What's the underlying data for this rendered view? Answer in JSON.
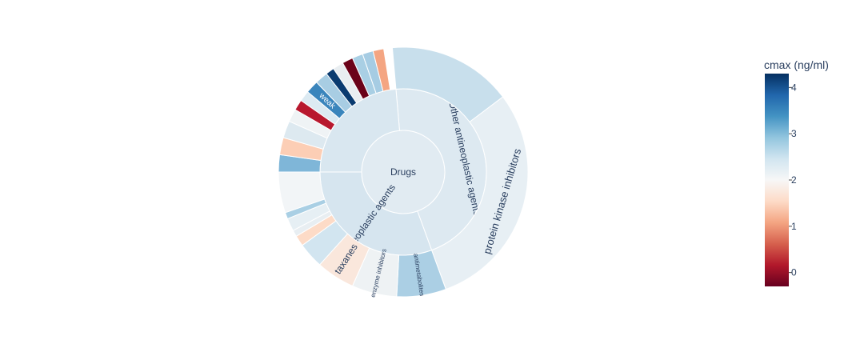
{
  "chart_data": {
    "type": "sunburst",
    "root": {
      "label": "Drugs",
      "color": "#e1ebf2",
      "children": [
        {
          "label": "Other antineoplastic agents",
          "span": 165,
          "color": "#dde9f1",
          "children": [
            {
              "label": "",
              "span": 58,
              "color": "#c8dfec"
            },
            {
              "label": "protein kinase inhibitors",
              "span": 107,
              "color": "#e7eff4"
            }
          ]
        },
        {
          "label": "Antineoplastic agents",
          "span": 110,
          "color": "#d6e5ef",
          "children": [
            {
              "label": "antimetabolites",
              "span": 23,
              "color": "#abcfe4"
            },
            {
              "label": "enzyme inhibitors",
              "span": 21,
              "color": "#eef2f4"
            },
            {
              "label": "taxanes",
              "span": 18,
              "color": "#fae7dc"
            },
            {
              "label": "",
              "span": 12,
              "color": "#d2e5f0"
            },
            {
              "label": "",
              "span": 5,
              "color": "#fddbc7"
            },
            {
              "label": "",
              "span": 3,
              "color": "#e8eef2"
            },
            {
              "label": "",
              "span": 6,
              "color": "#e6eff4"
            },
            {
              "label": "",
              "span": 3,
              "color": "#a9cfe4"
            },
            {
              "label": "",
              "span": 19,
              "color": "#f2f5f7"
            }
          ]
        },
        {
          "label": "",
          "span": 85,
          "color": "#d9e7f0",
          "children": [
            {
              "label": "",
              "span": 8,
              "color": "#7fb6d8"
            },
            {
              "label": "",
              "span": 8,
              "color": "#fcceb5"
            },
            {
              "label": "",
              "span": 8,
              "color": "#dde9f0"
            },
            {
              "label": "",
              "span": 6,
              "color": "#eff3f5"
            },
            {
              "label": "",
              "span": 5,
              "color": "#b8182e"
            },
            {
              "label": "",
              "span": 5,
              "color": "#dceaf2"
            },
            {
              "label": "weak",
              "span": 6,
              "color": "#3a85bc"
            },
            {
              "label": "",
              "span": 6,
              "color": "#a8cde3"
            },
            {
              "label": "",
              "span": 4,
              "color": "#0a3b70"
            },
            {
              "label": "",
              "span": 5,
              "color": "#e9eef1"
            },
            {
              "label": "",
              "span": 5,
              "color": "#6b0219"
            },
            {
              "label": "",
              "span": 5,
              "color": "#a9cfe4"
            },
            {
              "label": "",
              "span": 5,
              "color": "#a6cce3"
            },
            {
              "label": "",
              "span": 5,
              "color": "#f4a582"
            }
          ]
        }
      ]
    },
    "colorscale": {
      "title": "cmax (ng/ml)",
      "min": -0.3,
      "max": 4.3,
      "ticks": [
        0,
        1,
        2,
        3,
        4
      ],
      "stops": [
        "#67001f",
        "#b2182b",
        "#d6604d",
        "#f4a582",
        "#fddbc7",
        "#f7f7f7",
        "#d1e5f0",
        "#92c5de",
        "#4393c3",
        "#2166ac",
        "#053061"
      ]
    }
  }
}
